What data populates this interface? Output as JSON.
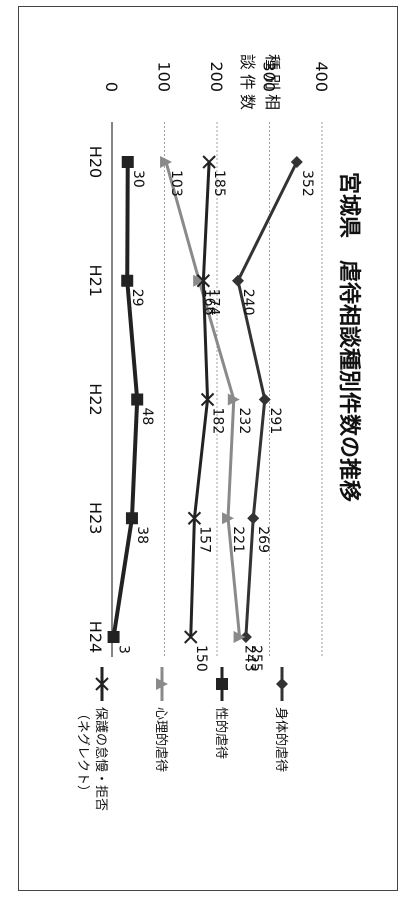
{
  "chart_data": {
    "type": "line",
    "title": "宮城県　虐待相談種別件数の推移",
    "ylabel": "種別相談件数",
    "ylim": [
      0,
      400
    ],
    "yticks": [
      0,
      100,
      200,
      300,
      400
    ],
    "categories": [
      "H20",
      "H21",
      "H22",
      "H23",
      "H24"
    ],
    "grid": true,
    "legend_position": "right",
    "orientation": "rotated-90-clockwise",
    "series": [
      {
        "name": "身体的虐待",
        "values": [
          352,
          240,
          291,
          269,
          255
        ],
        "color": "#333333",
        "marker": "diamond"
      },
      {
        "name": "性的虐待",
        "values": [
          30,
          29,
          48,
          38,
          3
        ],
        "color": "#222222",
        "marker": "square"
      },
      {
        "name": "心理的虐待",
        "values": [
          103,
          166,
          232,
          221,
          243
        ],
        "color": "#8a8a8a",
        "marker": "triangle"
      },
      {
        "name": "保護の怠慢・拒否",
        "name_line2": "（ネグレクト）",
        "values": [
          185,
          174,
          182,
          157,
          150
        ],
        "color": "#222222",
        "marker": "x"
      }
    ]
  }
}
